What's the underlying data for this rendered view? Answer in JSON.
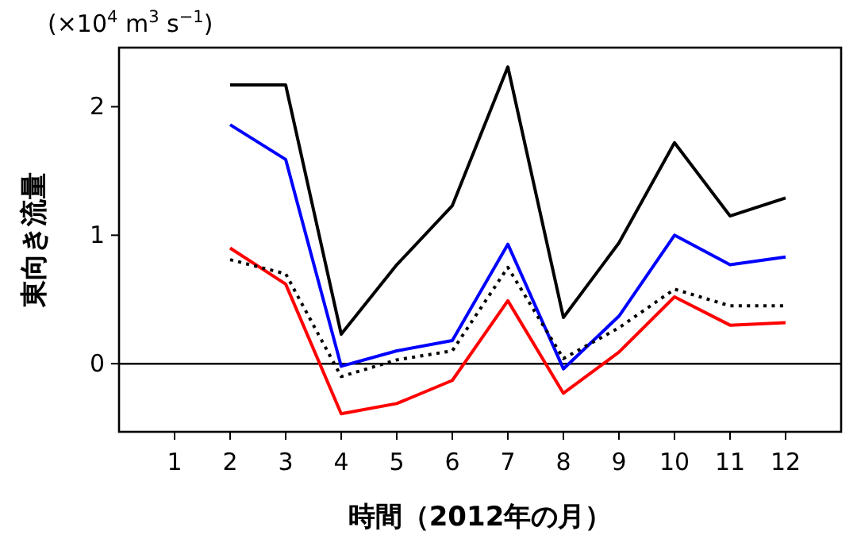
{
  "chart_data": {
    "type": "line",
    "xlabel": "時間（2012年の月）",
    "ylabel": "東向き流量",
    "annotations": [
      "(×10$^{4}$ m$^{3}$ s$^{−1}$)"
    ],
    "x": [
      2,
      3,
      4,
      5,
      6,
      7,
      8,
      9,
      10,
      11,
      12
    ],
    "series": [
      {
        "color": "#000000",
        "values": [
          2.17,
          2.17,
          0.23,
          0.77,
          1.23,
          2.31,
          0.36,
          0.94,
          1.72,
          1.15,
          1.29
        ]
      },
      {
        "color": "#0000ff",
        "values": [
          1.86,
          1.59,
          -0.02,
          0.1,
          0.18,
          0.93,
          -0.04,
          0.37,
          1.0,
          0.77,
          0.83
        ]
      },
      {
        "color": "#ff0000",
        "values": [
          0.9,
          0.62,
          -0.39,
          -0.31,
          -0.13,
          0.49,
          -0.23,
          0.09,
          0.52,
          0.3,
          0.32
        ]
      },
      {
        "color": "#000000",
        "line_style": "dotted",
        "values": [
          0.81,
          0.7,
          -0.1,
          0.03,
          0.1,
          0.75,
          0.04,
          0.28,
          0.58,
          0.45,
          0.45
        ]
      }
    ],
    "xlim": [
      0,
      13
    ],
    "xticks": [
      1,
      2,
      3,
      4,
      5,
      6,
      7,
      8,
      9,
      10,
      11,
      12
    ],
    "ylim": [
      -0.53,
      2.46
    ],
    "yticks": [
      0,
      1,
      2
    ],
    "ref_lines": [
      {
        "axis": "y",
        "value": 0,
        "color": "#000000"
      }
    ]
  }
}
